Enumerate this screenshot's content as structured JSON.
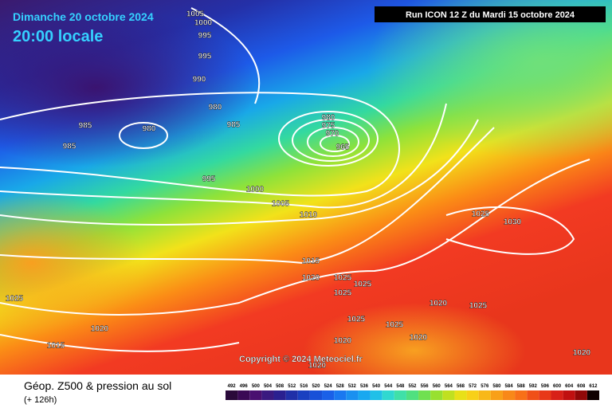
{
  "header": {
    "date": "Dimanche 20 octobre 2024",
    "time": "20:00 locale",
    "run": "Run ICON 12 Z du Mardi 15 octobre 2024"
  },
  "footer": {
    "copyright": "Copyright © 2024 Meteociel.fr",
    "product": "Géop. Z500 & pression au sol",
    "offset": "(+ 126h)"
  },
  "isobar_labels": [
    1005,
    1000,
    995,
    995,
    990,
    980,
    985,
    980,
    985,
    985,
    980,
    975,
    970,
    965,
    995,
    1000,
    1005,
    1010,
    1015,
    1020,
    1025,
    1025,
    1025,
    1025,
    1020,
    1015,
    1020,
    1025,
    1025,
    1025,
    1020,
    1020,
    1020,
    1025,
    1030,
    1020
  ],
  "colorbar_labels": [
    492,
    496,
    500,
    504,
    508,
    512,
    516,
    520,
    524,
    528,
    532,
    536,
    540,
    544,
    548,
    552,
    556,
    560,
    564,
    568,
    572,
    576,
    580,
    584,
    588,
    592,
    596,
    600,
    604,
    608,
    612
  ]
}
